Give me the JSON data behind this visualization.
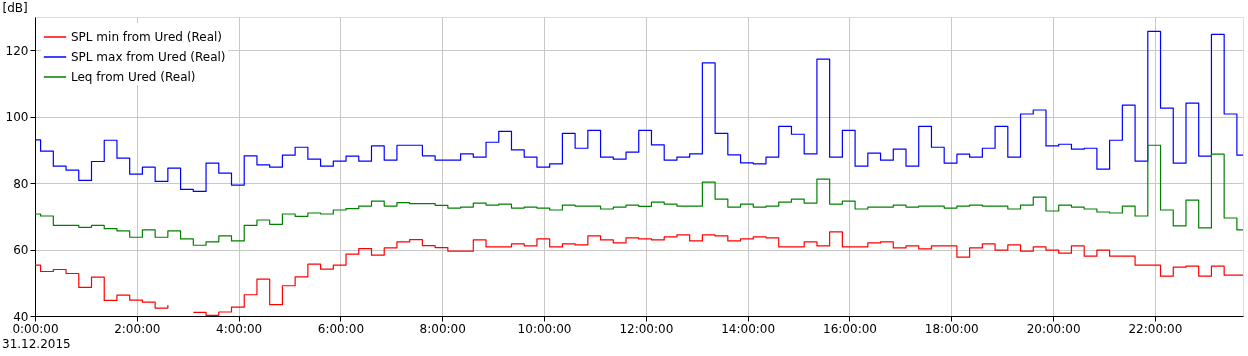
{
  "chart_data": {
    "type": "step",
    "ylabel": "[dB]",
    "x": [
      0,
      0.11,
      0.36,
      0.61,
      0.86,
      1.11,
      1.36,
      1.61,
      1.86,
      2.11,
      2.36,
      2.61,
      2.86,
      3.11,
      3.36,
      3.61,
      3.86,
      4.11,
      4.36,
      4.61,
      4.86,
      5.11,
      5.36,
      5.61,
      5.86,
      6.11,
      6.36,
      6.61,
      6.86,
      7.11,
      7.36,
      7.61,
      7.86,
      8.11,
      8.36,
      8.61,
      8.86,
      9.11,
      9.36,
      9.61,
      9.86,
      10.11,
      10.36,
      10.61,
      10.86,
      11.11,
      11.36,
      11.61,
      11.86,
      12.11,
      12.36,
      12.61,
      12.86,
      13.11,
      13.36,
      13.61,
      13.86,
      14.11,
      14.36,
      14.61,
      14.86,
      15.11,
      15.36,
      15.61,
      15.86,
      16.11,
      16.36,
      16.61,
      16.86,
      17.11,
      17.36,
      17.61,
      17.86,
      18.11,
      18.36,
      18.61,
      18.86,
      19.11,
      19.36,
      19.61,
      19.86,
      20.11,
      20.36,
      20.61,
      20.86,
      21.11,
      21.36,
      21.61,
      21.86,
      22.11,
      22.36,
      22.61,
      22.86,
      23.11,
      23.36,
      23.61
    ],
    "series": [
      {
        "name": "SPL min from Ured (Real)",
        "color": "#ff0000",
        "values": [
          55.3,
          53.4,
          54.0,
          52.8,
          48.6,
          51.7,
          44.7,
          46.3,
          44.8,
          44.2,
          42.4,
          43.3,
          null,
          41.1,
          40.2,
          41.2,
          42.7,
          46.4,
          51.1,
          43.4,
          49.1,
          51.8,
          55.6,
          54.1,
          55.3,
          58.6,
          60.3,
          58.3,
          60.5,
          62.3,
          63.0,
          61.2,
          60.6,
          59.5,
          59.5,
          62.9,
          60.8,
          60.8,
          61.7,
          61.1,
          63.2,
          60.8,
          61.7,
          61.4,
          64.1,
          62.9,
          62.0,
          63.5,
          63.2,
          62.9,
          63.8,
          64.4,
          62.6,
          64.4,
          64.1,
          62.6,
          63.2,
          63.8,
          63.5,
          60.8,
          60.8,
          62.3,
          61.1,
          65.3,
          60.8,
          60.8,
          62.0,
          62.3,
          60.5,
          61.1,
          60.2,
          61.1,
          61.1,
          57.7,
          60.5,
          61.7,
          59.8,
          61.4,
          59.5,
          60.8,
          59.8,
          58.9,
          61.1,
          58.0,
          59.8,
          58.0,
          58.0,
          55.3,
          55.3,
          52.0,
          54.7,
          55.0,
          52.0,
          55.0,
          52.3,
          52.3
        ]
      },
      {
        "name": "SPL max from Ured (Real)",
        "color": "#0000ff",
        "values": [
          93,
          89.6,
          85.1,
          83.9,
          80.8,
          86.5,
          92.9,
          87.5,
          82.7,
          84.8,
          80.5,
          84.5,
          78.1,
          77.5,
          86.0,
          83.0,
          79.4,
          88.2,
          85.5,
          84.8,
          88.4,
          90.8,
          87.2,
          85.1,
          86.6,
          88.1,
          86.6,
          91.2,
          86.9,
          91.4,
          91.4,
          88.2,
          86.9,
          86.9,
          88.8,
          87.8,
          92.3,
          95.6,
          90.0,
          87.8,
          84.8,
          85.8,
          95.0,
          90.5,
          95.9,
          87.8,
          87.2,
          89.3,
          95.9,
          91.5,
          86.9,
          87.8,
          88.8,
          116.2,
          95.0,
          88.5,
          86.1,
          85.8,
          87.8,
          97.1,
          94.7,
          88.8,
          117.3,
          87.8,
          95.9,
          85.1,
          89.0,
          86.9,
          90.2,
          85.1,
          97.1,
          90.8,
          86.0,
          88.7,
          87.8,
          90.5,
          97.1,
          87.8,
          100.8,
          102.0,
          91.2,
          91.7,
          90.2,
          90.5,
          84.2,
          92.9,
          103.5,
          86.6,
          125.7,
          102.6,
          86.0,
          104.1,
          88.1,
          124.8,
          100.8,
          88.4
        ]
      },
      {
        "name": "Leq from Ured (Real)",
        "color": "#008000",
        "values": [
          70.7,
          70.1,
          67.3,
          67.3,
          66.7,
          67.3,
          66.3,
          65.6,
          63.7,
          65.9,
          63.7,
          65.6,
          63.2,
          61.3,
          62.3,
          64.1,
          62.6,
          67.3,
          68.9,
          67.6,
          70.7,
          70.0,
          71.0,
          70.7,
          71.9,
          72.3,
          73.1,
          74.6,
          73.1,
          74.1,
          73.8,
          73.8,
          73.3,
          72.5,
          72.8,
          74.0,
          73.4,
          73.7,
          72.5,
          72.8,
          72.5,
          71.9,
          73.4,
          73.1,
          73.1,
          72.2,
          72.8,
          73.4,
          73.0,
          74.3,
          73.7,
          73.1,
          73.1,
          80.3,
          75.2,
          72.8,
          73.7,
          72.8,
          73.1,
          74.3,
          75.2,
          74.0,
          81.2,
          73.7,
          74.6,
          72.2,
          72.8,
          72.8,
          73.4,
          72.8,
          73.1,
          73.1,
          72.5,
          73.1,
          73.4,
          73.1,
          73.1,
          72.2,
          73.4,
          75.8,
          71.6,
          73.4,
          72.8,
          72.2,
          71.3,
          71.0,
          73.1,
          70.1,
          91.4,
          71.9,
          67.1,
          74.9,
          66.5,
          88.7,
          69.5,
          65.9
        ]
      }
    ],
    "xlim": [
      0,
      23.73
    ],
    "xticks": [
      {
        "value": 0,
        "label": "0:00:00"
      },
      {
        "value": 2,
        "label": "2:00:00"
      },
      {
        "value": 4,
        "label": "4:00:00"
      },
      {
        "value": 6,
        "label": "6:00:00"
      },
      {
        "value": 8,
        "label": "8:00:00"
      },
      {
        "value": 10,
        "label": "10:00:00"
      },
      {
        "value": 12,
        "label": "12:00:00"
      },
      {
        "value": 14,
        "label": "14:00:00"
      },
      {
        "value": 16,
        "label": "16:00:00"
      },
      {
        "value": 18,
        "label": "18:00:00"
      },
      {
        "value": 20,
        "label": "20:00:00"
      },
      {
        "value": 22,
        "label": "22:00:00"
      }
    ],
    "ylim": [
      40,
      130
    ],
    "yticks": [
      40,
      60,
      80,
      100,
      120
    ],
    "grid": true,
    "legend": "top left",
    "annotations": [
      "31.12.2015"
    ]
  }
}
